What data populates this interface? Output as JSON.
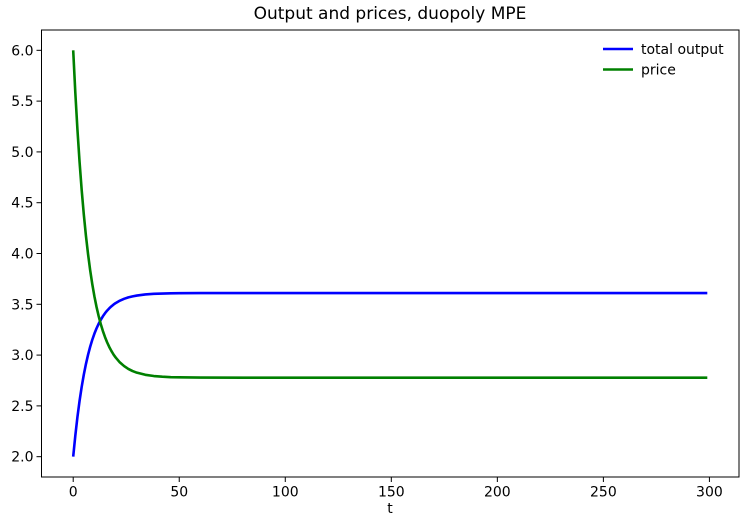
{
  "chart_data": {
    "type": "line",
    "title": "Output and prices, duopoly MPE",
    "xlabel": "t",
    "ylabel": "",
    "grid": false,
    "legend_position": "upper right",
    "legend_frame": false,
    "xlim": [
      -14.95,
      313.95
    ],
    "ylim": [
      1.8,
      6.2
    ],
    "xticks": [
      0,
      50,
      100,
      150,
      200,
      250,
      300
    ],
    "xticklabels": [
      "0",
      "50",
      "100",
      "150",
      "200",
      "250",
      "300"
    ],
    "yticks": [
      2.0,
      2.5,
      3.0,
      3.5,
      4.0,
      4.5,
      5.0,
      5.5,
      6.0
    ],
    "yticklabels": [
      "2.0",
      "2.5",
      "3.0",
      "3.5",
      "4.0",
      "4.5",
      "5.0",
      "5.5",
      "6.0"
    ],
    "x": [
      0,
      1,
      2,
      3,
      4,
      5,
      6,
      7,
      8,
      9,
      10,
      11,
      12,
      13,
      14,
      15,
      16,
      17,
      18,
      19,
      20,
      22,
      24,
      26,
      28,
      30,
      34,
      38,
      42,
      46,
      50,
      60,
      80,
      100,
      150,
      200,
      250,
      299
    ],
    "series": [
      {
        "name": "total output",
        "color": "#0000ff",
        "linewidth": 2,
        "start_value": 2.0,
        "end_value": 3.611,
        "values": [
          2.0,
          2.209,
          2.392,
          2.55,
          2.688,
          2.808,
          2.912,
          3.003,
          3.082,
          3.151,
          3.211,
          3.263,
          3.308,
          3.347,
          3.382,
          3.412,
          3.438,
          3.46,
          3.48,
          3.497,
          3.512,
          3.536,
          3.554,
          3.568,
          3.578,
          3.586,
          3.597,
          3.603,
          3.606,
          3.608,
          3.609,
          3.611,
          3.611,
          3.611,
          3.611,
          3.611,
          3.611,
          3.611
        ]
      },
      {
        "name": "price",
        "color": "#008000",
        "linewidth": 2,
        "start_value": 6.0,
        "end_value": 2.778,
        "values": [
          6.0,
          5.581,
          5.217,
          4.9,
          4.624,
          4.384,
          4.175,
          3.994,
          3.835,
          3.698,
          3.578,
          3.474,
          3.384,
          3.305,
          3.237,
          3.177,
          3.125,
          3.08,
          3.041,
          3.006,
          2.977,
          2.928,
          2.892,
          2.864,
          2.843,
          2.827,
          2.806,
          2.794,
          2.787,
          2.783,
          2.781,
          2.779,
          2.778,
          2.778,
          2.778,
          2.778,
          2.778,
          2.778
        ]
      }
    ]
  }
}
